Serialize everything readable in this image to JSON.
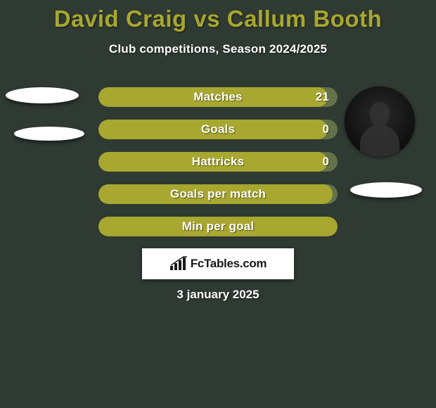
{
  "background_color": "#2f3a32",
  "title": {
    "player1": "David Craig",
    "vs": "vs",
    "player2": "Callum Booth",
    "color": "#a8a72f",
    "fontsize": 33
  },
  "subtitle": {
    "text": "Club competitions, Season 2024/2025",
    "color": "#ffffff",
    "fontsize": 17
  },
  "bars": {
    "track_color": "#637249",
    "fill_color": "#a8a72f",
    "label_color": "#ffffff",
    "label_fontsize": 17,
    "height": 28,
    "radius": 14,
    "gap": 18,
    "items": [
      {
        "label": "Matches",
        "value_right": "21",
        "fill_pct": 96,
        "center_offset_pct": 50
      },
      {
        "label": "Goals",
        "value_right": "0",
        "fill_pct": 96,
        "center_offset_pct": 50
      },
      {
        "label": "Hattricks",
        "value_right": "0",
        "fill_pct": 96,
        "center_offset_pct": 50
      },
      {
        "label": "Goals per match",
        "value_right": "",
        "fill_pct": 98,
        "center_offset_pct": 50
      },
      {
        "label": "Min per goal",
        "value_right": "",
        "fill_pct": 100,
        "center_offset_pct": 50
      }
    ]
  },
  "avatars": {
    "left_bg": "#ffffff",
    "right_bg": "#141414",
    "right_has_silhouette": true,
    "blip_color": "#ffffff"
  },
  "attribution": {
    "box_bg": "#ffffff",
    "text": "FcTables.com",
    "text_color": "#1a1a1a",
    "icon_color": "#1a1a1a"
  },
  "date": {
    "text": "3 january 2025",
    "color": "#ffffff"
  }
}
